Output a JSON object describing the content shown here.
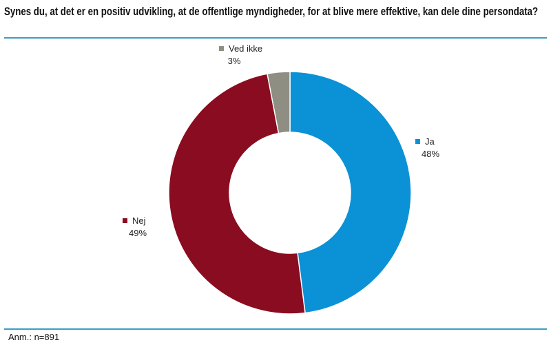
{
  "title": "Synes du, at det er en positiv udvikling, at de offentlige myndigheder, for at blive mere effektive, kan dele dine persondata?",
  "note": "Anm.: n=891",
  "chart_data": {
    "type": "pie",
    "subtype": "donut",
    "title": "Synes du, at det er en positiv udvikling, at de offentlige myndigheder, for at blive mere effektive, kan dele dine persondata?",
    "categories": [
      "Ja",
      "Nej",
      "Ved ikke"
    ],
    "values": [
      48,
      49,
      3
    ],
    "value_labels": [
      "48%",
      "49%",
      "3%"
    ],
    "colors": [
      "#0a91d6",
      "#8a0c20",
      "#8e8e83"
    ],
    "legend": "data labels next to slices"
  }
}
